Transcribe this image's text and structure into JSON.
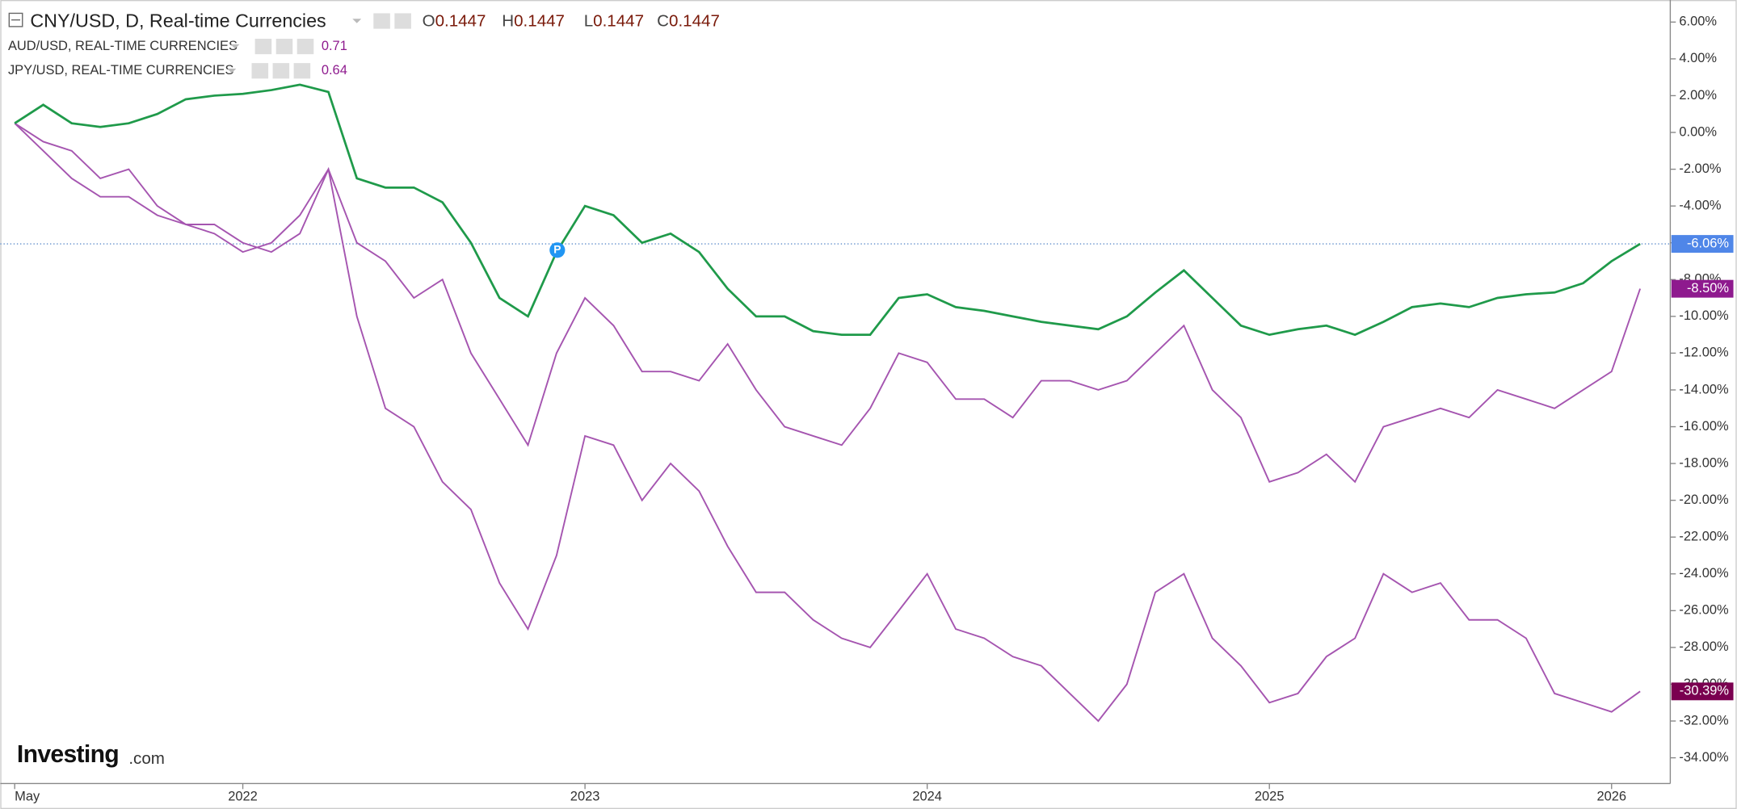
{
  "chart_data": {
    "type": "line",
    "title": "CNY/USD, D, Real-time Currencies",
    "ohlc": [
      {
        "label": "O",
        "value": 0.1447
      },
      {
        "label": "H",
        "value": 0.1447
      },
      {
        "label": "L",
        "value": 0.1447
      },
      {
        "label": "C",
        "value": 0.1447
      }
    ],
    "annotation": "P",
    "watermark": [
      "Investing",
      ".com"
    ],
    "categories": [
      "May",
      null,
      null,
      null,
      null,
      null,
      null,
      null,
      "2022",
      null,
      null,
      null,
      null,
      null,
      null,
      null,
      null,
      null,
      null,
      null,
      "2023",
      null,
      null,
      null,
      null,
      null,
      null,
      null,
      null,
      null,
      null,
      null,
      "2024",
      null,
      null,
      null,
      null,
      null,
      null,
      null,
      null,
      null,
      null,
      null,
      "2025",
      null,
      null,
      null,
      null,
      null,
      null,
      null,
      null,
      null,
      null,
      null,
      "2026",
      null
    ],
    "series": [
      {
        "name": "CNY/USD",
        "color": "#1f9a4a",
        "last_label": "-6.06%",
        "label_color": "#4f86e8",
        "values": [
          0.5,
          1.5,
          0.5,
          0.3,
          0.5,
          1.0,
          1.8,
          2.0,
          2.1,
          2.3,
          2.6,
          2.2,
          -2.5,
          -3.0,
          -3.0,
          -3.8,
          -6.0,
          -9.0,
          -10.0,
          -6.5,
          -4.0,
          -4.5,
          -6.0,
          -5.5,
          -6.5,
          -8.5,
          -10.0,
          -10.0,
          -10.8,
          -11.0,
          -11.0,
          -9.0,
          -8.8,
          -9.5,
          -9.7,
          -10.0,
          -10.3,
          -10.5,
          -10.7,
          -10.0,
          -8.7,
          -7.5,
          -9.0,
          -10.5,
          -11.0,
          -10.7,
          -10.5,
          -11.0,
          -10.3,
          -9.5,
          -9.3,
          -9.5,
          -9.0,
          -8.8,
          -8.7,
          -8.2,
          -7.0,
          -6.06
        ]
      },
      {
        "name": "AUD/USD, REAL-TIME CURRENCIES",
        "color": "#a555b0",
        "last_price": 0.71,
        "last_label": "-8.50%",
        "label_color": "#8e1a8e",
        "values": [
          0.5,
          -0.5,
          -1.0,
          -2.5,
          -2.0,
          -4.0,
          -5.0,
          -5.0,
          -6.0,
          -6.5,
          -5.5,
          -2.0,
          -6.0,
          -7.0,
          -9.0,
          -8.0,
          -12.0,
          -14.5,
          -17.0,
          -12.0,
          -9.0,
          -10.5,
          -13.0,
          -13.0,
          -13.5,
          -11.5,
          -14.0,
          -16.0,
          -16.5,
          -17.0,
          -15.0,
          -12.0,
          -12.5,
          -14.5,
          -14.5,
          -15.5,
          -13.5,
          -13.5,
          -14.0,
          -13.5,
          -12.0,
          -10.5,
          -14.0,
          -15.5,
          -19.0,
          -18.5,
          -17.5,
          -19.0,
          -16.0,
          -15.5,
          -15.0,
          -15.5,
          -14.0,
          -14.5,
          -15.0,
          -14.0,
          -13.0,
          -8.5
        ]
      },
      {
        "name": "JPY/USD, REAL-TIME CURRENCIES",
        "color": "#a555b0",
        "last_price": 0.64,
        "last_label": "-30.39%",
        "label_color": "#7a0050",
        "values": [
          0.5,
          -1.0,
          -2.5,
          -3.5,
          -3.5,
          -4.5,
          -5.0,
          -5.5,
          -6.5,
          -6.0,
          -4.5,
          -2.0,
          -10.0,
          -15.0,
          -16.0,
          -19.0,
          -20.5,
          -24.5,
          -27.0,
          -23.0,
          -16.5,
          -17.0,
          -20.0,
          -18.0,
          -19.5,
          -22.5,
          -25.0,
          -25.0,
          -26.5,
          -27.5,
          -28.0,
          -26.0,
          -24.0,
          -27.0,
          -27.5,
          -28.5,
          -29.0,
          -30.5,
          -32.0,
          -30.0,
          -25.0,
          -24.0,
          -27.5,
          -29.0,
          -31.0,
          -30.5,
          -28.5,
          -27.5,
          -24.0,
          -25.0,
          -24.5,
          -26.5,
          -26.5,
          -27.5,
          -30.5,
          -31.0,
          -31.5,
          -30.39
        ]
      }
    ],
    "ylim": [
      -35.4,
      7.2
    ],
    "yticks": [
      {
        "value": 6,
        "label": "6.00%"
      },
      {
        "value": 4,
        "label": "4.00%"
      },
      {
        "value": 2,
        "label": "2.00%"
      },
      {
        "value": 0,
        "label": "0.00%"
      },
      {
        "value": -2,
        "label": "-2.00%"
      },
      {
        "value": -4,
        "label": "-4.00%"
      },
      {
        "value": -6,
        "label": "-6.00%"
      },
      {
        "value": -8,
        "label": "-8.00%"
      },
      {
        "value": -10,
        "label": "-10.00%"
      },
      {
        "value": -12,
        "label": "-12.00%"
      },
      {
        "value": -14,
        "label": "-14.00%"
      },
      {
        "value": -16,
        "label": "-16.00%"
      },
      {
        "value": -18,
        "label": "-18.00%"
      },
      {
        "value": -20,
        "label": "-20.00%"
      },
      {
        "value": -22,
        "label": "-22.00%"
      },
      {
        "value": -24,
        "label": "-24.00%"
      },
      {
        "value": -26,
        "label": "-26.00%"
      },
      {
        "value": -28,
        "label": "-28.00%"
      },
      {
        "value": -30,
        "label": "-30.00%"
      },
      {
        "value": -32,
        "label": "-32.00%"
      },
      {
        "value": -34,
        "label": "-34.00%"
      }
    ]
  }
}
